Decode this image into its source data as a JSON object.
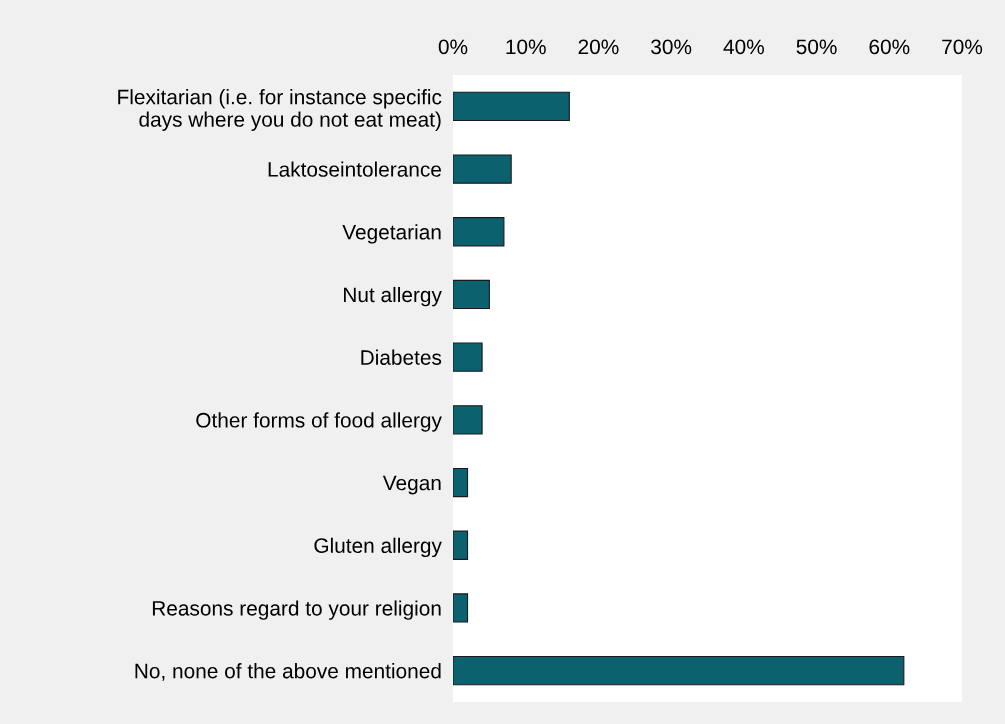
{
  "chart_data": {
    "type": "bar",
    "orientation": "horizontal",
    "categories": [
      "Flexitarian (i.e. for instance specific\ndays where you do not eat meat)",
      "Laktoseintolerance",
      "Vegetarian",
      "Nut allergy",
      "Diabetes",
      "Other forms of food allergy",
      "Vegan",
      "Gluten allergy",
      "Reasons regard to your religion",
      "No, none of the above mentioned"
    ],
    "values": [
      16,
      8,
      7,
      5,
      4,
      4,
      2,
      2,
      2,
      62
    ],
    "color": "#0b626e",
    "xlim": [
      0,
      70
    ],
    "xticks": [
      {
        "value": 0,
        "label": "0%"
      },
      {
        "value": 10,
        "label": "10%"
      },
      {
        "value": 20,
        "label": "20%"
      },
      {
        "value": 30,
        "label": "30%"
      },
      {
        "value": 40,
        "label": "40%"
      },
      {
        "value": 50,
        "label": "50%"
      },
      {
        "value": 60,
        "label": "60%"
      },
      {
        "value": 70,
        "label": "70%"
      }
    ],
    "grid": false,
    "legend": false
  }
}
